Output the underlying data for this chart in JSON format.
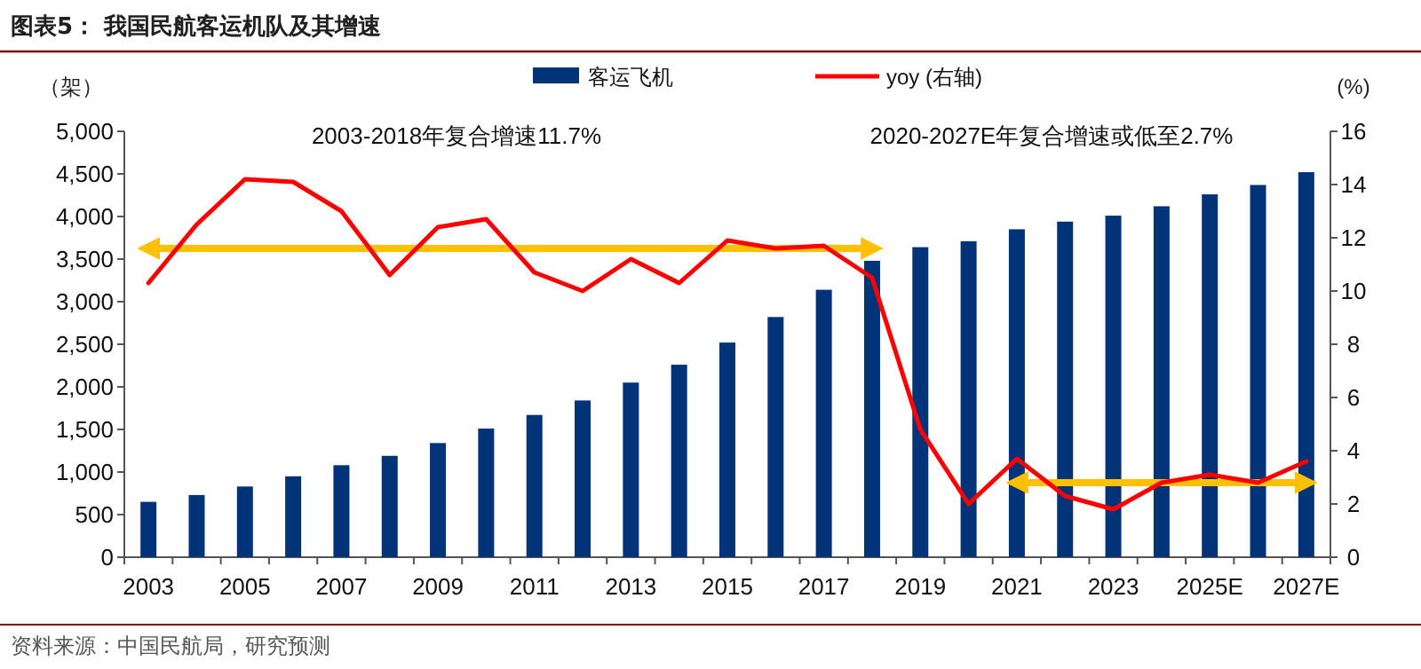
{
  "chart_data": {
    "type": "bar",
    "title": "图表5：  我国民航客运机队及其增速",
    "ylabel": "（架）",
    "y2label": "(%)",
    "annotations": [
      "2003-2018年复合增速11.7%",
      "2020-2027E年复合增速或低至2.7%",
      "资料来源：中国民航局，研究预测"
    ],
    "categories": [
      "2003",
      null,
      "2005",
      null,
      "2007",
      null,
      "2009",
      null,
      "2011",
      null,
      "2013",
      null,
      "2015",
      null,
      "2017",
      null,
      "2019",
      null,
      "2021",
      null,
      "2023",
      null,
      "2025E",
      null,
      "2027E"
    ],
    "series": [
      {
        "name": "客运飞机",
        "color": "#003378",
        "values": [
          650,
          730,
          830,
          950,
          1080,
          1190,
          1340,
          1510,
          1670,
          1840,
          2050,
          2260,
          2520,
          2820,
          3140,
          3480,
          3640,
          3710,
          3850,
          3940,
          4010,
          4120,
          4260,
          4370,
          4520
        ]
      },
      {
        "name": "yoy (右轴)",
        "type": "line",
        "axis": "y2",
        "color": "#ff0000",
        "values": [
          10.3,
          12.5,
          14.2,
          14.1,
          13.0,
          10.6,
          12.4,
          12.7,
          10.7,
          10.0,
          11.2,
          10.3,
          11.9,
          11.6,
          11.7,
          10.5,
          4.8,
          2.0,
          3.7,
          2.3,
          1.8,
          2.8,
          3.1,
          2.8,
          3.6
        ]
      },
      {
        "type": "line",
        "axis": "y2",
        "color": "#ffc000",
        "values": [
          11.6,
          11.6,
          11.6,
          11.6,
          11.6,
          11.6,
          11.6,
          11.6,
          11.6,
          11.6,
          11.6,
          11.6,
          11.6,
          11.6,
          11.6,
          11.6,
          null,
          null,
          null,
          null,
          null,
          null,
          null,
          null,
          null
        ]
      },
      {
        "type": "line",
        "axis": "y2",
        "color": "#ffc000",
        "values": [
          null,
          null,
          null,
          null,
          null,
          null,
          null,
          null,
          null,
          null,
          null,
          null,
          null,
          null,
          null,
          null,
          null,
          null,
          2.8,
          2.8,
          2.8,
          2.8,
          2.8,
          2.8,
          2.8
        ]
      }
    ],
    "ylim": [
      0,
      5000
    ],
    "yticks": [
      0,
      500,
      {
        "value": 1000,
        "label": "1,000"
      },
      {
        "value": 1500,
        "label": "1,500"
      },
      {
        "value": 2000,
        "label": "2,000"
      },
      {
        "value": 2500,
        "label": "2,500"
      },
      {
        "value": 3000,
        "label": "3,000"
      },
      {
        "value": 3500,
        "label": "3,500"
      },
      {
        "value": 4000,
        "label": "4,000"
      },
      {
        "value": 4500,
        "label": "4,500"
      },
      {
        "value": 5000,
        "label": "5,000"
      }
    ],
    "y2lim": [
      0,
      16
    ],
    "y2ticks": [
      0,
      2,
      4,
      6,
      8,
      10,
      12,
      14,
      16
    ],
    "legend": "top",
    "grid": false,
    "marker": "none",
    "line_style": "solid"
  }
}
